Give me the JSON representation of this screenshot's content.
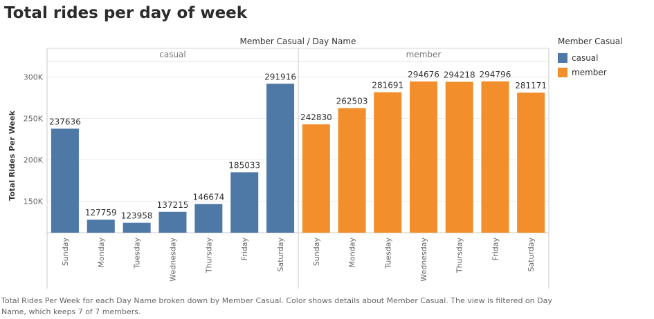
{
  "chart_data": {
    "type": "bar",
    "title": "Total rides per day of week",
    "facet_header": "Member Casual  /  Day Name",
    "ylabel": "Total Rides Per Week",
    "ylim": [
      112000,
      318000
    ],
    "yticks": [
      150000,
      200000,
      250000,
      300000
    ],
    "ytick_labels": [
      "150K",
      "200K",
      "250K",
      "300K"
    ],
    "grid": true,
    "legend_position": "right",
    "categories": [
      "Sunday",
      "Monday",
      "Tuesday",
      "Wednesday",
      "Thursday",
      "Friday",
      "Saturday"
    ],
    "series": [
      {
        "name": "casual",
        "color": "#4e79a7",
        "values": [
          237636,
          127759,
          123958,
          137215,
          146674,
          185033,
          291916
        ]
      },
      {
        "name": "member",
        "color": "#f28e2b",
        "values": [
          242830,
          262503,
          281691,
          294676,
          294218,
          294796,
          281171
        ]
      }
    ]
  },
  "legend": {
    "title": "Member Casual",
    "items": [
      {
        "label": "casual",
        "color": "#4e79a7"
      },
      {
        "label": "member",
        "color": "#f28e2b"
      }
    ]
  },
  "caption": "Total Rides Per Week for each Day Name broken down by Member Casual.  Color shows details about Member Casual. The view is filtered on Day Name, which keeps 7 of 7 members."
}
